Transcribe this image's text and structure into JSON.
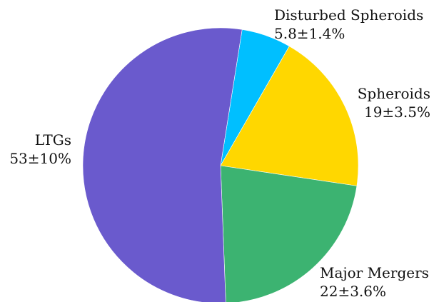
{
  "chart_data": {
    "type": "pie",
    "title": "",
    "slices": [
      {
        "label": "Disturbed Spheroids",
        "value_text": "5.8±1.4%",
        "value": 5.8,
        "color": "#00bfff"
      },
      {
        "label": "Spheroids",
        "value_text": "19±3.5%",
        "value": 19,
        "color": "#ffd700"
      },
      {
        "label": "Major Mergers",
        "value_text": "22±3.6%",
        "value": 22,
        "color": "#3cb371"
      },
      {
        "label": "LTGs",
        "value_text": "53±10%",
        "value": 53,
        "color": "#6a5acd"
      }
    ],
    "start_angle_deg": 81,
    "direction": "clockwise",
    "legend": "none"
  }
}
